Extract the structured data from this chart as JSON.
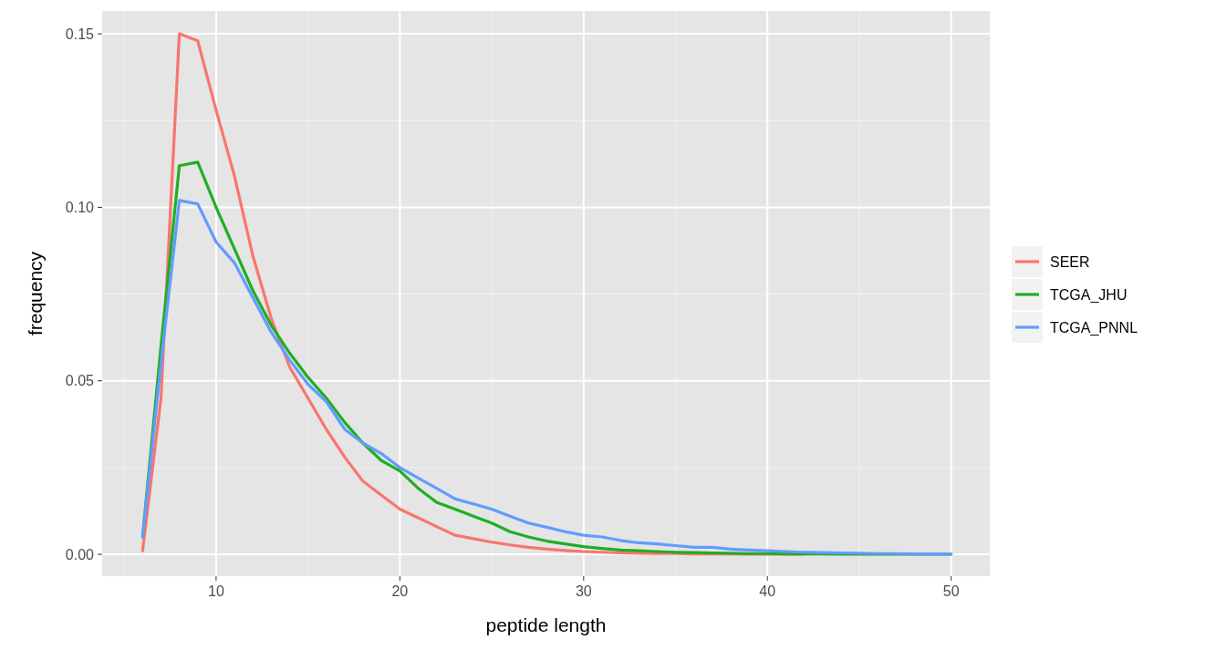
{
  "chart_data": {
    "type": "line",
    "xlabel": "peptide length",
    "ylabel": "frequency",
    "x": [
      6,
      7,
      8,
      9,
      10,
      11,
      12,
      13,
      14,
      15,
      16,
      17,
      18,
      19,
      20,
      21,
      22,
      23,
      24,
      25,
      26,
      27,
      28,
      29,
      30,
      31,
      32,
      33,
      34,
      35,
      36,
      37,
      38,
      39,
      40,
      41,
      42,
      43,
      44,
      45,
      46,
      47,
      48,
      49,
      50
    ],
    "series": [
      {
        "name": "SEER",
        "color": "#f8766d",
        "values": [
          0.001,
          0.045,
          0.15,
          0.148,
          0.128,
          0.109,
          0.086,
          0.068,
          0.054,
          0.045,
          0.036,
          0.028,
          0.021,
          0.017,
          0.013,
          0.0105,
          0.008,
          0.0055,
          0.0045,
          0.0035,
          0.0027,
          0.002,
          0.0015,
          0.0011,
          0.0008,
          0.0006,
          0.0004,
          0.0003,
          0.0002,
          0.0002,
          0.0001,
          0.0001,
          0.0001,
          0,
          0,
          0,
          0,
          null,
          null,
          null,
          null,
          null,
          null,
          null,
          null
        ]
      },
      {
        "name": "TCGA_JHU",
        "color": "#1fae24",
        "values": [
          0.005,
          0.06,
          0.112,
          0.113,
          0.1,
          0.088,
          0.076,
          0.066,
          0.058,
          0.051,
          0.045,
          0.038,
          0.032,
          0.027,
          0.024,
          0.019,
          0.015,
          0.013,
          0.011,
          0.009,
          0.0065,
          0.005,
          0.0038,
          0.003,
          0.0022,
          0.0017,
          0.0012,
          0.001,
          0.0008,
          0.0006,
          0.0005,
          0.0004,
          0.0003,
          0.0002,
          0.0002,
          0.0001,
          0.0001,
          0.0001,
          0,
          0,
          0,
          0,
          0,
          0,
          0
        ]
      },
      {
        "name": "TCGA_PNNL",
        "color": "#619cff",
        "values": [
          0.005,
          0.055,
          0.102,
          0.101,
          0.09,
          0.084,
          0.074,
          0.064,
          0.056,
          0.049,
          0.044,
          0.036,
          0.032,
          0.029,
          0.025,
          0.022,
          0.019,
          0.016,
          0.0145,
          0.013,
          0.011,
          0.009,
          0.0078,
          0.0065,
          0.0055,
          0.005,
          0.004,
          0.0033,
          0.003,
          0.0025,
          0.002,
          0.002,
          0.0015,
          0.0012,
          0.001,
          0.0008,
          0.0006,
          0.0005,
          0.0004,
          0.0003,
          0.0002,
          0.0002,
          0.0001,
          0.0001,
          0.0001
        ]
      }
    ],
    "xlim": [
      3.8,
      52.1
    ],
    "xticks": [
      10,
      20,
      30,
      40,
      50
    ],
    "ylim": [
      -0.0063,
      0.1566
    ],
    "yticks": [
      {
        "value": 0,
        "label": "0.00"
      },
      {
        "value": 0.05,
        "label": "0.05"
      },
      {
        "value": 0.1,
        "label": "0.10"
      },
      {
        "value": 0.15,
        "label": "0.15"
      }
    ],
    "grid": true,
    "legend": "right",
    "line_style": "solid",
    "marker": "none"
  }
}
